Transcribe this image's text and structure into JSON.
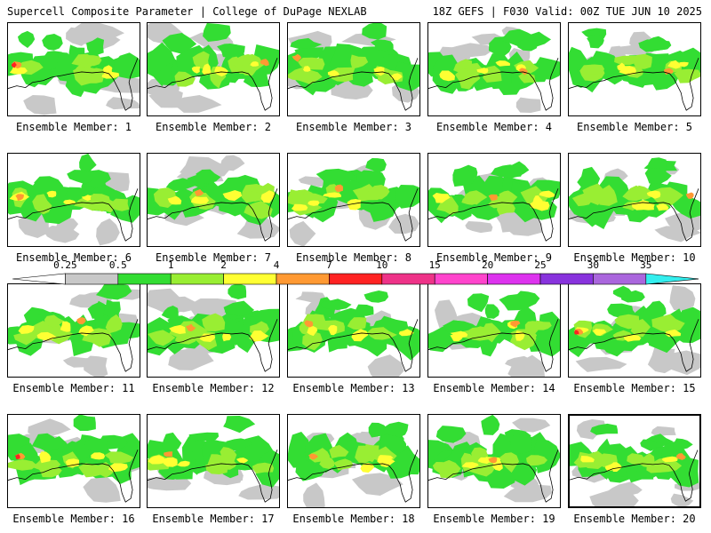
{
  "header": {
    "title": "Supercell Composite Parameter | College of DuPage NEXLAB",
    "run_info": "18Z GEFS | F030 Valid: 00Z TUE JUN 10 2025"
  },
  "panels": [
    {
      "label": "Ensemble Member: 1"
    },
    {
      "label": "Ensemble Member: 2"
    },
    {
      "label": "Ensemble Member: 3"
    },
    {
      "label": "Ensemble Member: 4"
    },
    {
      "label": "Ensemble Member: 5"
    },
    {
      "label": "Ensemble Member: 6"
    },
    {
      "label": "Ensemble Member: 7"
    },
    {
      "label": "Ensemble Member: 8"
    },
    {
      "label": "Ensemble Member: 9"
    },
    {
      "label": "Ensemble Member: 10"
    },
    {
      "label": "Ensemble Member: 11"
    },
    {
      "label": "Ensemble Member: 12"
    },
    {
      "label": "Ensemble Member: 13"
    },
    {
      "label": "Ensemble Member: 14"
    },
    {
      "label": "Ensemble Member: 15"
    },
    {
      "label": "Ensemble Member: 16"
    },
    {
      "label": "Ensemble Member: 17"
    },
    {
      "label": "Ensemble Member: 18"
    },
    {
      "label": "Ensemble Member: 19"
    },
    {
      "label": "Ensemble Member: 20",
      "selected": true
    }
  ],
  "colorbar": {
    "ticks": [
      "0.25",
      "0.5",
      "1",
      "2",
      "4",
      "7",
      "10",
      "15",
      "20",
      "25",
      "30",
      "35"
    ],
    "colors": [
      "#ffffff",
      "#c8c8c8",
      "#33dd33",
      "#99ee33",
      "#ffff33",
      "#ff9933",
      "#ff2222",
      "#ee3388",
      "#ff44cc",
      "#dd33ee",
      "#8833dd",
      "#aa66dd",
      "#33eeee"
    ]
  }
}
